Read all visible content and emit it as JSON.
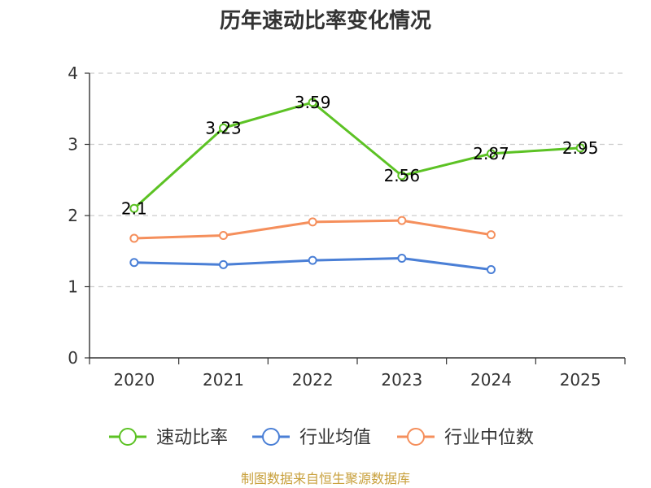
{
  "chart_data": {
    "type": "line",
    "title": "历年速动比率变化情况",
    "categories": [
      "2020",
      "2021",
      "2022",
      "2023",
      "2024",
      "2025"
    ],
    "ylim": [
      0,
      4
    ],
    "yticks": [
      "0",
      "1",
      "2",
      "3",
      "4"
    ],
    "grid": true,
    "legend_position": "bottom",
    "series": [
      {
        "name": "速动比率",
        "color": "#5cc224",
        "values": [
          2.1,
          3.23,
          3.59,
          2.56,
          2.87,
          2.95
        ],
        "labels": [
          "2.1",
          "3.23",
          "3.59",
          "2.56",
          "2.87",
          "2.95"
        ]
      },
      {
        "name": "行业均值",
        "color": "#4a7fd6",
        "values": [
          1.34,
          1.31,
          1.37,
          1.4,
          1.24,
          null
        ]
      },
      {
        "name": "行业中位数",
        "color": "#f58f5c",
        "values": [
          1.68,
          1.72,
          1.91,
          1.93,
          1.73,
          null
        ]
      }
    ],
    "source": "制图数据来自恒生聚源数据库"
  }
}
